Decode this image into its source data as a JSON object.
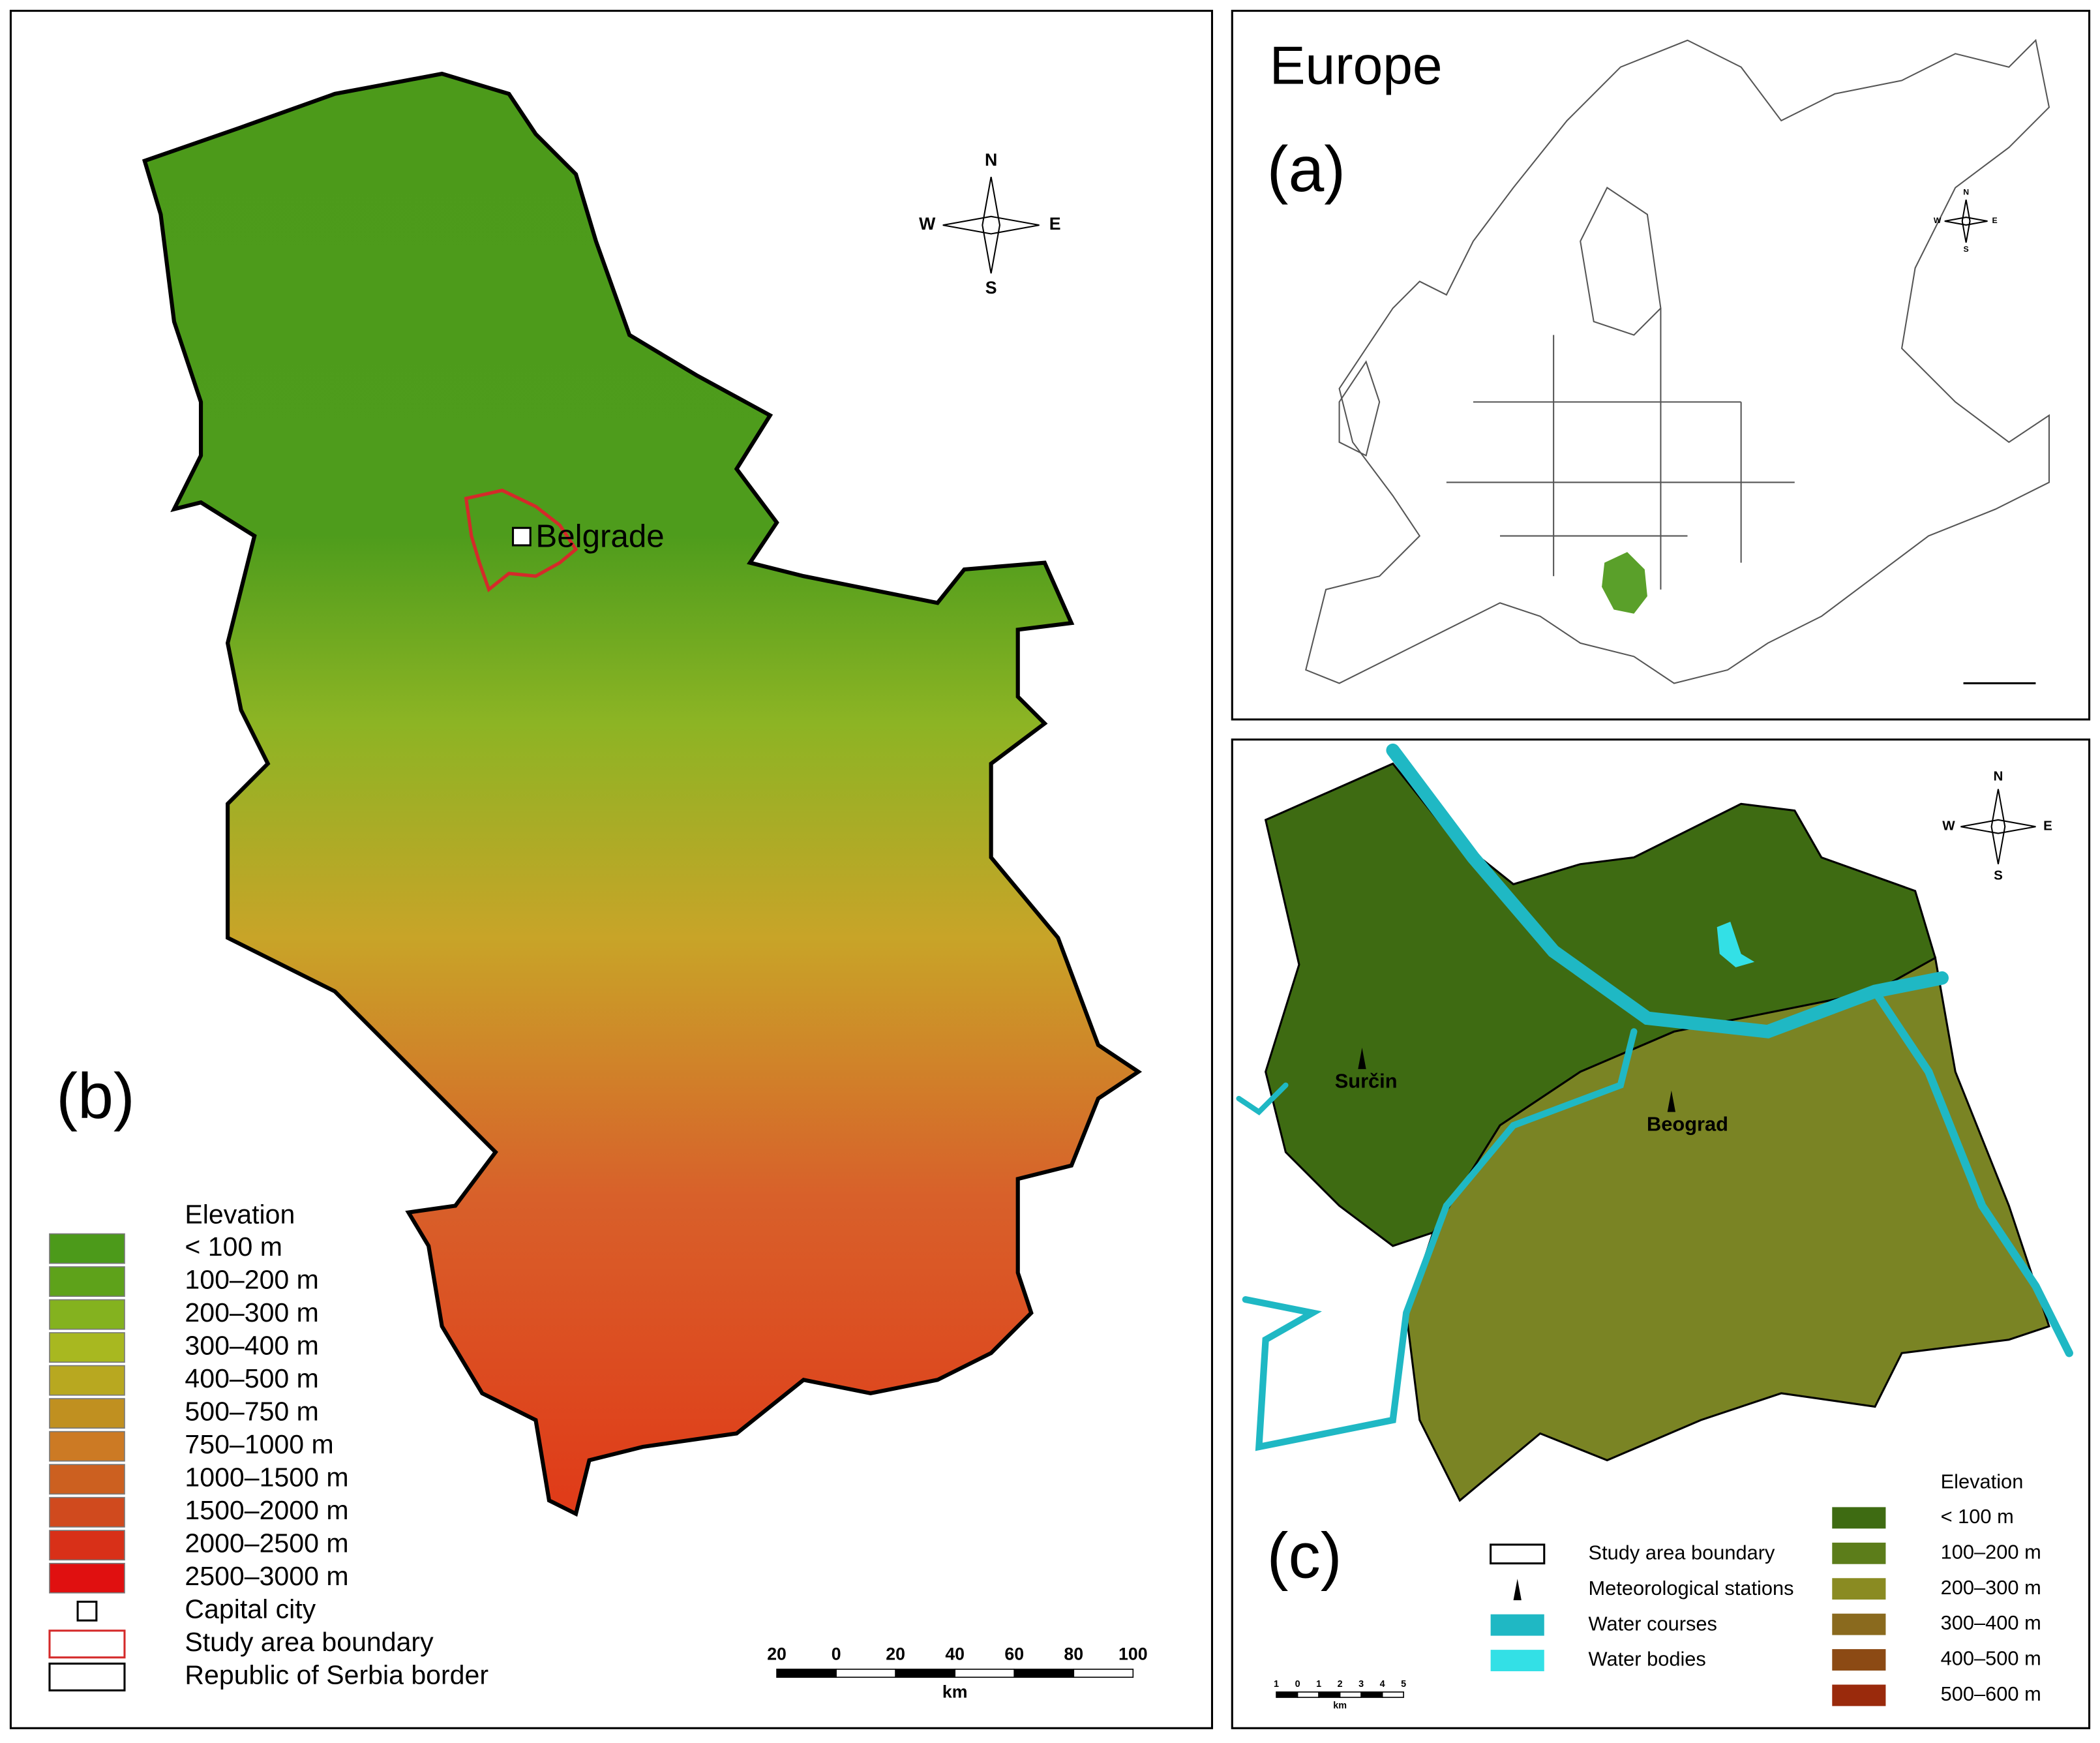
{
  "panel_a": {
    "title": "Europe",
    "label": "(a)",
    "compass": {
      "n": "N",
      "e": "E",
      "s": "S",
      "w": "W"
    }
  },
  "panel_b": {
    "label": "(b)",
    "place": "Belgrade",
    "compass": {
      "n": "N",
      "e": "E",
      "s": "S",
      "w": "W"
    },
    "legend": {
      "title": "Elevation",
      "entries": [
        {
          "label": "< 100 m",
          "color": "#4c9a1a"
        },
        {
          "label": "100–200 m",
          "color": "#5ea21a"
        },
        {
          "label": "200–300 m",
          "color": "#84b21f"
        },
        {
          "label": "300–400 m",
          "color": "#a8b820"
        },
        {
          "label": "400–500 m",
          "color": "#b8a820"
        },
        {
          "label": "500–750 m",
          "color": "#c09020"
        },
        {
          "label": "750–1000 m",
          "color": "#cc7a24"
        },
        {
          "label": "1000–1500 m",
          "color": "#cc6020"
        },
        {
          "label": "1500–2000 m",
          "color": "#d04a1e"
        },
        {
          "label": "2000–2500 m",
          "color": "#d83018"
        },
        {
          "label": "2500–3000 m",
          "color": "#e01010"
        }
      ],
      "symbols": [
        {
          "label": "Capital city",
          "color": "#000000"
        },
        {
          "label": "Study area boundary",
          "color": "#d42a2a"
        },
        {
          "label": "Republic of Serbia border",
          "color": "#000000"
        }
      ]
    },
    "scale": {
      "ticks": [
        "20",
        "0",
        "20",
        "40",
        "60",
        "80",
        "100"
      ],
      "unit": "km"
    }
  },
  "panel_c": {
    "label": "(c)",
    "compass": {
      "n": "N",
      "e": "E",
      "s": "S",
      "w": "W"
    },
    "stations": [
      "Surčin",
      "Beograd"
    ],
    "legend": {
      "title": "Elevation",
      "entries": [
        {
          "label": "< 100 m",
          "color": "#3e6b12"
        },
        {
          "label": "100–200 m",
          "color": "#5c7d1a"
        },
        {
          "label": "200–300 m",
          "color": "#8a8b22"
        },
        {
          "label": "300–400 m",
          "color": "#8a6a1e"
        },
        {
          "label": "400–500 m",
          "color": "#8c4a14"
        },
        {
          "label": "500–600 m",
          "color": "#9a2a0c"
        }
      ],
      "symbols": [
        {
          "label": "Study area boundary",
          "color": "#000000"
        },
        {
          "label": "Meteorological stations",
          "color": "#000000"
        },
        {
          "label": "Water courses",
          "color": "#1fb8c4"
        },
        {
          "label": "Water bodies",
          "color": "#33e0e6"
        }
      ]
    },
    "scale": {
      "ticks": [
        "1",
        "0",
        "1",
        "2",
        "3",
        "4",
        "5"
      ],
      "unit": "km"
    }
  }
}
